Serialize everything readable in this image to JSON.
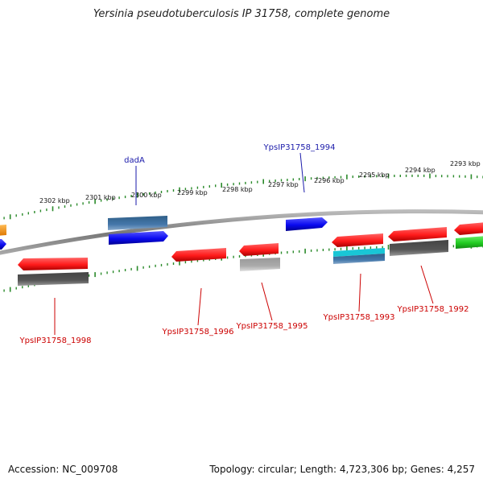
{
  "title": "Yersinia pseudotuberculosis IP 31758, complete genome",
  "footer": {
    "accession": "Accession: NC_009708",
    "summary": "Topology: circular; Length: 4,723,306 bp; Genes: 4,257"
  },
  "colors": {
    "backbone": "#888888",
    "tick": "#2a8a2a",
    "label_forward": "#1a1aaa",
    "label_reverse": "#cc0000",
    "red": "#ff1a1a",
    "blue": "#0a0af0",
    "steel": "#4477aa",
    "gray": "#555555",
    "lightgray": "#aaaaaa",
    "cyan": "#19c6d6",
    "green": "#22cc22",
    "orange": "#ff8800"
  },
  "ticks": [
    {
      "label": "2302 kbp"
    },
    {
      "label": "2301 kbp"
    },
    {
      "label": "2300 kbp"
    },
    {
      "label": "2299 kbp"
    },
    {
      "label": "2298 kbp"
    },
    {
      "label": "2297 kbp"
    },
    {
      "label": "2296 kbp"
    },
    {
      "label": "2295 kbp"
    },
    {
      "label": "2294 kbp"
    },
    {
      "label": "2293 kbp"
    }
  ],
  "gene_labels": [
    {
      "name": "dadA",
      "strand": "forward"
    },
    {
      "name": "YpsIP31758_1994",
      "strand": "forward"
    },
    {
      "name": "YpsIP31758_1998",
      "strand": "reverse"
    },
    {
      "name": "YpsIP31758_1996",
      "strand": "reverse"
    },
    {
      "name": "YpsIP31758_1995",
      "strand": "reverse"
    },
    {
      "name": "YpsIP31758_1993",
      "strand": "reverse"
    },
    {
      "name": "YpsIP31758_1992",
      "strand": "reverse"
    }
  ]
}
